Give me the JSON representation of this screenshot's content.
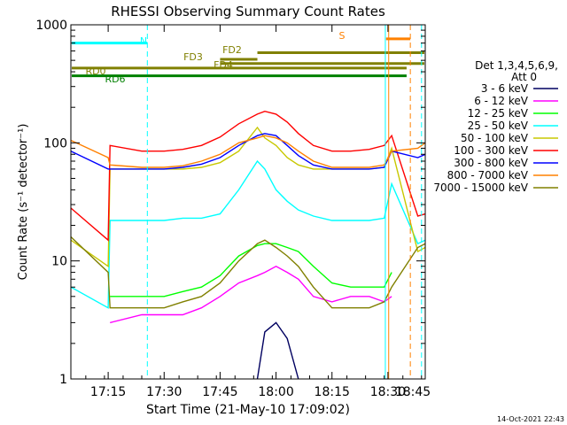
{
  "chart_data": {
    "type": "line",
    "title": "RHESSI Observing Summary Count Rates",
    "xlabel": "Start Time (21-May-10 17:09:02)",
    "ylabel": "Count Rate (s⁻¹ detector⁻¹)",
    "yscale": "log",
    "ylim": [
      1,
      1000
    ],
    "xlim_minutes": [
      -4,
      91
    ],
    "x_ticks": [
      {
        "minutes": 6,
        "label": "17:15"
      },
      {
        "minutes": 21,
        "label": "17:30"
      },
      {
        "minutes": 36,
        "label": "17:45"
      },
      {
        "minutes": 51,
        "label": "18:00"
      },
      {
        "minutes": 66,
        "label": "18:15"
      },
      {
        "minutes": 81,
        "label": "18:30"
      },
      {
        "minutes": 96,
        "label": "18:45"
      }
    ],
    "y_ticks": [
      {
        "value": 1,
        "label": "1"
      },
      {
        "value": 10,
        "label": "10"
      },
      {
        "value": 100,
        "label": "100"
      },
      {
        "value": 1000,
        "label": "1000"
      }
    ],
    "legend_header": [
      "Det 1,3,4,5,6,9,",
      "Att 0"
    ],
    "x_minutes": [
      -4,
      6,
      6.5,
      15,
      21,
      26,
      31,
      36,
      41,
      46,
      48,
      51,
      54,
      57,
      61,
      66,
      71,
      76,
      80,
      82,
      89,
      91
    ],
    "series": [
      {
        "name": "3 - 6 keV",
        "color": "#000060",
        "values": [
          null,
          null,
          null,
          null,
          null,
          null,
          null,
          null,
          null,
          1,
          2.5,
          3,
          2.2,
          1,
          null,
          null,
          null,
          null,
          null,
          null,
          null,
          null
        ]
      },
      {
        "name": "6 - 12 keV",
        "color": "#ff00ff",
        "values": [
          null,
          null,
          3,
          3.5,
          3.5,
          3.5,
          4,
          5,
          6.5,
          7.5,
          8,
          9,
          8,
          7,
          5,
          4.5,
          5,
          5,
          4.5,
          5,
          null,
          null
        ]
      },
      {
        "name": "12 - 25 keV",
        "color": "#00ff00",
        "values": [
          null,
          null,
          5,
          5,
          5,
          5.5,
          6,
          7.5,
          11,
          13.5,
          14,
          14,
          13,
          12,
          9,
          6.5,
          6,
          6,
          6,
          8,
          null,
          null
        ]
      },
      {
        "name": "25 - 50 keV",
        "color": "#00ffff",
        "values": [
          6,
          4,
          22,
          22,
          22,
          23,
          23,
          25,
          40,
          70,
          60,
          40,
          32,
          27,
          24,
          22,
          22,
          22,
          23,
          45,
          14,
          15
        ]
      },
      {
        "name": "50 - 100 keV",
        "color": "#c8c800",
        "values": [
          15,
          9,
          60,
          60,
          60,
          60,
          62,
          68,
          85,
          135,
          110,
          95,
          75,
          65,
          60,
          60,
          60,
          60,
          62,
          90,
          12,
          13
        ]
      },
      {
        "name": "100 - 300 keV",
        "color": "#ff0000",
        "values": [
          28,
          15,
          95,
          85,
          85,
          88,
          95,
          112,
          145,
          175,
          185,
          175,
          150,
          120,
          95,
          85,
          85,
          88,
          95,
          115,
          24,
          25
        ]
      },
      {
        "name": "300 - 800 keV",
        "color": "#0000ff",
        "values": [
          85,
          60,
          60,
          60,
          60,
          62,
          66,
          75,
          95,
          115,
          120,
          115,
          95,
          78,
          65,
          60,
          60,
          60,
          62,
          85,
          75,
          80
        ]
      },
      {
        "name": "800 - 7000 keV",
        "color": "#ff8000",
        "values": [
          105,
          75,
          65,
          62,
          62,
          64,
          70,
          80,
          100,
          110,
          115,
          110,
          100,
          85,
          70,
          62,
          62,
          62,
          65,
          85,
          90,
          100
        ]
      },
      {
        "name": "7000 - 15000 keV",
        "color": "#808000",
        "values": [
          16,
          8,
          4,
          4,
          4,
          4.5,
          5,
          6.5,
          10,
          14,
          15,
          13,
          11,
          9,
          6,
          4,
          4,
          4,
          4.5,
          6,
          13,
          14
        ]
      }
    ],
    "segments": [
      {
        "label": "N",
        "color": "#00ffff",
        "x": [
          -4,
          16.5
        ],
        "y": 700
      },
      {
        "label": "S",
        "color": "#ff8000",
        "x": [
          80.5,
          87
        ],
        "y": 760
      },
      {
        "label": "FD2",
        "color": "#808000",
        "x": [
          46,
          91
        ],
        "y": 580
      },
      {
        "label": "FD3",
        "color": "#808000",
        "x": [
          36,
          46
        ],
        "y": 510
      },
      {
        "label": "FD4",
        "color": "#808000",
        "x": [
          36,
          91
        ],
        "y": 470
      },
      {
        "label": "RD0",
        "color": "#808000",
        "x": [
          -4,
          86
        ],
        "y": 430
      },
      {
        "label": "RD6",
        "color": "#008000",
        "x": [
          -4,
          86
        ],
        "y": 370
      }
    ],
    "vertical_markers": [
      {
        "x": 16.5,
        "color": "#00ffff",
        "style": "dashed"
      },
      {
        "x": 80.3,
        "color": "#00ffff",
        "style": "solid"
      },
      {
        "x": 81.2,
        "color": "#ff8000",
        "style": "solid"
      },
      {
        "x": 87,
        "color": "#ff8000",
        "style": "dashed"
      },
      {
        "x": 90,
        "color": "#00ffff",
        "style": "dashed"
      }
    ],
    "timestamp": "14-Oct-2021 22:43"
  }
}
